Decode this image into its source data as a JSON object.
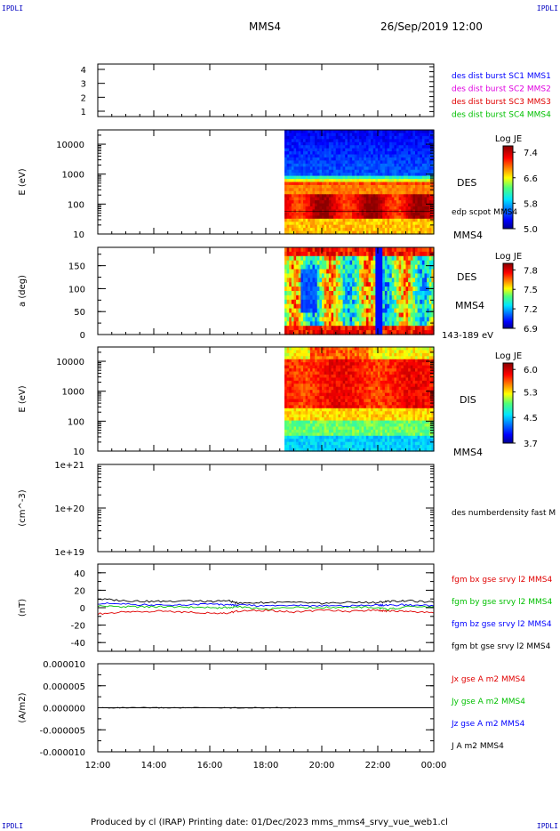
{
  "corners": {
    "tl": "IPDLI",
    "tr": "IPDLI",
    "bl": "IPDLI",
    "br": "IPDLI"
  },
  "header": {
    "spacecraft": "MMS4",
    "date": "26/Sep/2019 12:00"
  },
  "footer": {
    "text": "Produced by cl (IRAP)   Printing date: 01/Dec/2023   mms_mms4_srvy_vue_web1.cl"
  },
  "colors": {
    "c1": "#0000ff",
    "c2": "#e000e0",
    "c3": "#e00000",
    "c4": "#00c000",
    "bt": "#000000"
  },
  "chart_data": [
    {
      "type": "heatmap",
      "panel": "burst availability",
      "yticks": [
        "4",
        "3",
        "2",
        "1"
      ],
      "legend": [
        {
          "name": "des dist burst SC1 MMS1",
          "color": "#0000ff"
        },
        {
          "name": "des dist burst SC2 MMS2",
          "color": "#e000e0"
        },
        {
          "name": "des dist burst SC3 MMS3",
          "color": "#e00000"
        },
        {
          "name": "des dist burst SC4 MMS4",
          "color": "#00c000"
        }
      ]
    },
    {
      "type": "heatmap",
      "panel": "DES energy spectrogram",
      "ylabel": "E (eV)",
      "yscale": "log",
      "yticks": [
        "10000",
        "1000",
        "100",
        "10"
      ],
      "label": "DES",
      "overlay": "edp scpot MMS4",
      "below": "MMS4",
      "colorbar": {
        "title": "Log JE",
        "ticks": [
          "7.4",
          "6.6",
          "5.8",
          "5.0"
        ],
        "min": 5.0,
        "max": 7.6
      },
      "data_start": "18:40"
    },
    {
      "type": "heatmap",
      "panel": "DES pitch angle",
      "ylabel": "a (deg)",
      "yticks": [
        "150",
        "100",
        "50",
        "0"
      ],
      "label": "DES",
      "sublabel": "MMS4",
      "below": "143-189 eV",
      "colorbar": {
        "title": "Log JE",
        "ticks": [
          "7.8",
          "7.5",
          "7.2",
          "6.9"
        ],
        "min": 6.9,
        "max": 7.9
      },
      "data_start": "18:40"
    },
    {
      "type": "heatmap",
      "panel": "DIS energy spectrogram",
      "ylabel": "E (eV)",
      "yscale": "log",
      "yticks": [
        "10000",
        "1000",
        "100",
        "10"
      ],
      "label": "DIS",
      "below": "MMS4",
      "colorbar": {
        "title": "Log JE",
        "ticks": [
          "6.0",
          "5.3",
          "4.5",
          "3.7"
        ],
        "min": 3.7,
        "max": 6.2
      },
      "data_start": "18:40"
    },
    {
      "type": "line",
      "panel": "density",
      "ylabel": "(cm^-3)",
      "yscale": "log",
      "yticks": [
        "1e+21",
        "1e+20",
        "1e+19"
      ],
      "legend": [
        {
          "name": "des numberdensity fast M",
          "color": "#000000"
        }
      ],
      "series": []
    },
    {
      "type": "line",
      "panel": "magnetic field",
      "ylabel": "(nT)",
      "yticks": [
        "40",
        "20",
        "0",
        "-20",
        "-40"
      ],
      "ylim": [
        -50,
        50
      ],
      "x": [
        "12:00",
        "13:00",
        "14:00",
        "15:00",
        "16:00",
        "16:40",
        "17:00",
        "18:00",
        "19:00",
        "20:00",
        "21:00",
        "22:00",
        "22:20",
        "23:00",
        "00:00"
      ],
      "series": [
        {
          "name": "fgm bx gse srvy l2 MMS4",
          "color": "#e00000",
          "values": [
            -7,
            -5,
            -4,
            -5,
            -6,
            -6,
            -4,
            -3,
            -5,
            -3,
            -4,
            -3,
            -4,
            -4,
            -6
          ]
        },
        {
          "name": "fgm by gse srvy l2 MMS4",
          "color": "#00c000",
          "values": [
            2,
            1,
            1,
            1,
            0,
            0,
            1,
            -2,
            1,
            0,
            1,
            0,
            -2,
            1,
            1
          ]
        },
        {
          "name": "fgm bz gse srvy l2 MMS4",
          "color": "#0000ff",
          "values": [
            5,
            4,
            3,
            3,
            4,
            3,
            3,
            2,
            3,
            2,
            2,
            3,
            3,
            3,
            2
          ]
        },
        {
          "name": "fgm bt gse srvy l2 MMS4",
          "color": "#000000",
          "values": [
            10,
            8,
            7,
            8,
            7,
            8,
            5,
            6,
            6,
            5,
            6,
            6,
            7,
            8,
            6
          ]
        }
      ]
    },
    {
      "type": "line",
      "panel": "current density",
      "ylabel": "(A/m2)",
      "yticks": [
        "0.000010",
        "0.000005",
        "0.000000",
        "-0.000005",
        "-0.000010"
      ],
      "ylim": [
        -1e-05,
        1e-05
      ],
      "xticks": [
        "12:00",
        "14:00",
        "16:00",
        "18:00",
        "20:00",
        "22:00",
        "00:00"
      ],
      "series": [
        {
          "name": "Jx gse A m2 MMS4",
          "color": "#e00000"
        },
        {
          "name": "Jy gse A m2 MMS4",
          "color": "#00c000"
        },
        {
          "name": "Jz gse A m2 MMS4",
          "color": "#0000ff"
        },
        {
          "name": "J A m2 MMS4",
          "color": "#000000"
        }
      ]
    }
  ]
}
